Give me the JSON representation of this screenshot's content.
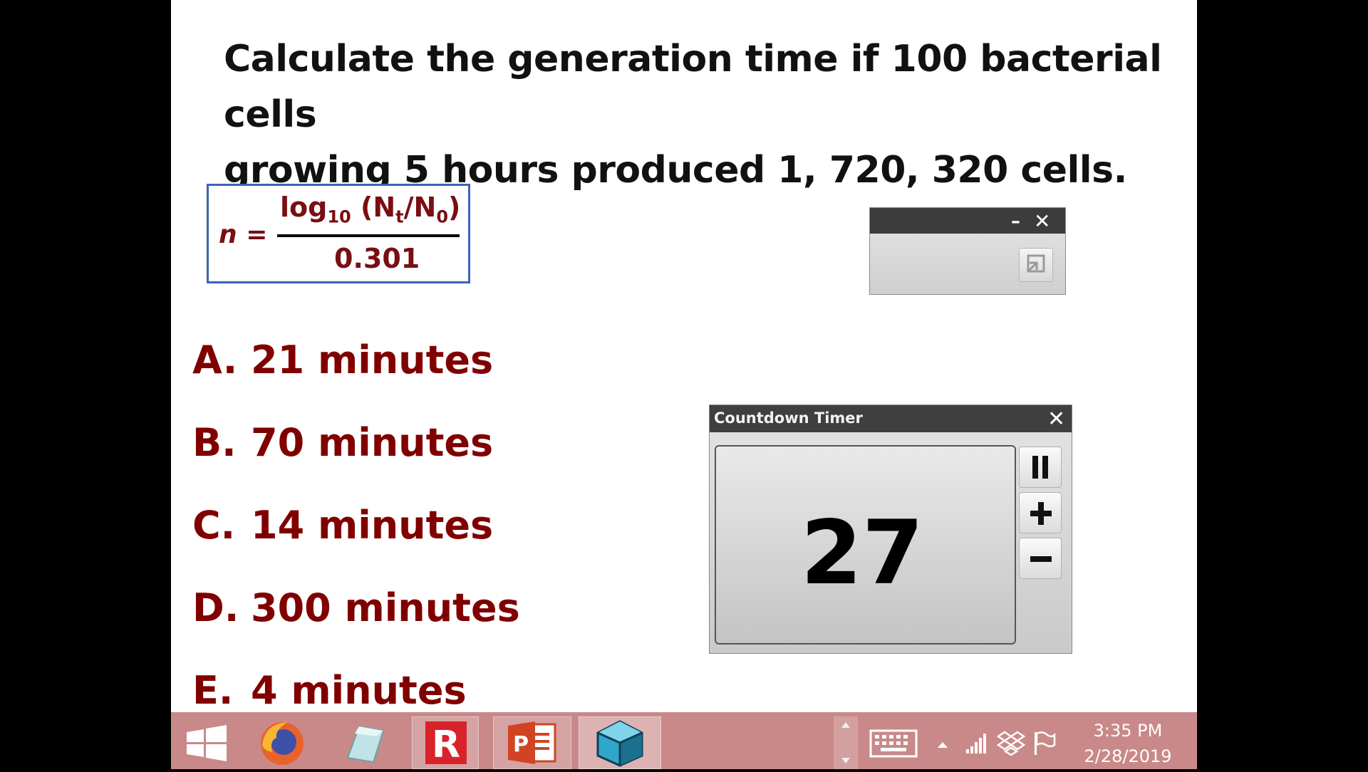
{
  "question": {
    "line1": "Calculate the generation time if 100 bacterial cells",
    "line2": "growing 5 hours produced 1, 720, 320 cells."
  },
  "formula": {
    "lhs": "n",
    "equals": "=",
    "numerator_log": "log",
    "numerator_base": "10",
    "numerator_open": "(N",
    "numerator_sub_t": "t",
    "numerator_slash": "/N",
    "numerator_sub_0": "0",
    "numerator_close": ")",
    "denominator": "0.301"
  },
  "answers": [
    {
      "letter": "A.",
      "text": "21 minutes"
    },
    {
      "letter": "B.",
      "text": "70 minutes"
    },
    {
      "letter": "C.",
      "text": "14 minutes"
    },
    {
      "letter": "D.",
      "text": "300 minutes"
    },
    {
      "letter": "E.",
      "text": "4 minutes"
    }
  ],
  "mini_window": {
    "minimize_label": "–",
    "close_label": "✕"
  },
  "timer": {
    "title": "Countdown Timer",
    "close_label": "✕",
    "value": "27"
  },
  "taskbar": {
    "time": "3:35 PM",
    "date": "2/28/2019",
    "colors": {
      "background": "#c98989",
      "powerpoint": "#d04423",
      "red_app": "#d9232a"
    }
  }
}
